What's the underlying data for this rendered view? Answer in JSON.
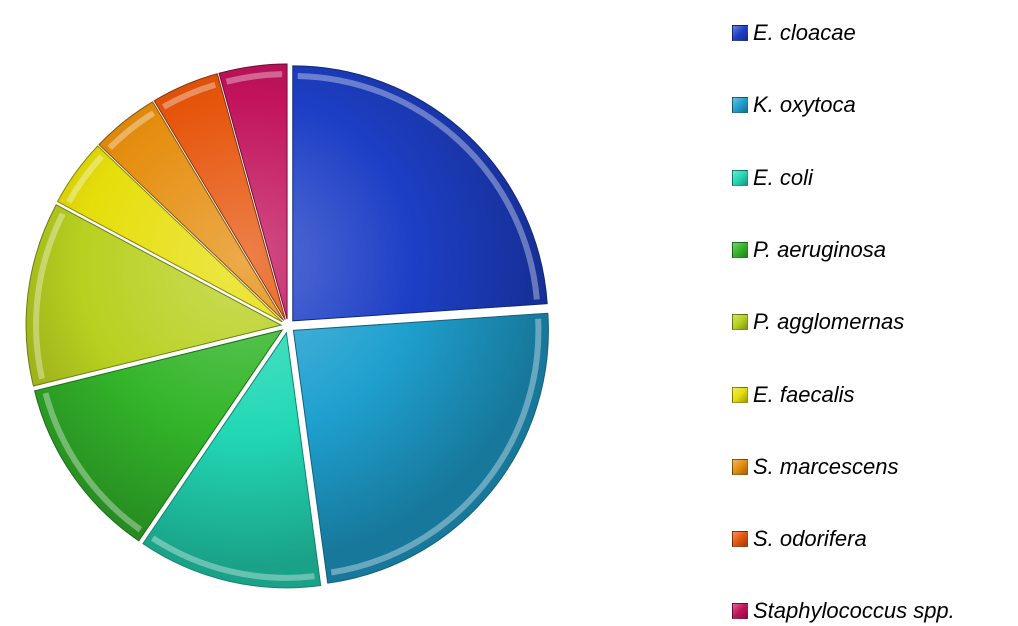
{
  "chart_data": {
    "type": "pie",
    "title": "",
    "categories": [
      "E. cloacae",
      "K. oxytoca",
      "E. coli",
      "P. aeruginosa",
      "P. agglomernas",
      "E. faecalis",
      "S. marcescens",
      "S. odorifera",
      "Staphylococcus spp."
    ],
    "values": [
      23.4,
      23.4,
      11.4,
      11.4,
      11.4,
      4.2,
      4.2,
      4.2,
      4.2
    ],
    "colors": [
      "#1d3fc6",
      "#1fa0cf",
      "#22d8b5",
      "#33b52a",
      "#b8d020",
      "#e6de0a",
      "#e58d0e",
      "#e6550c",
      "#c2135c"
    ],
    "legend_position": "right",
    "exploded": true,
    "start_angle_deg": 0,
    "direction": "clockwise"
  }
}
